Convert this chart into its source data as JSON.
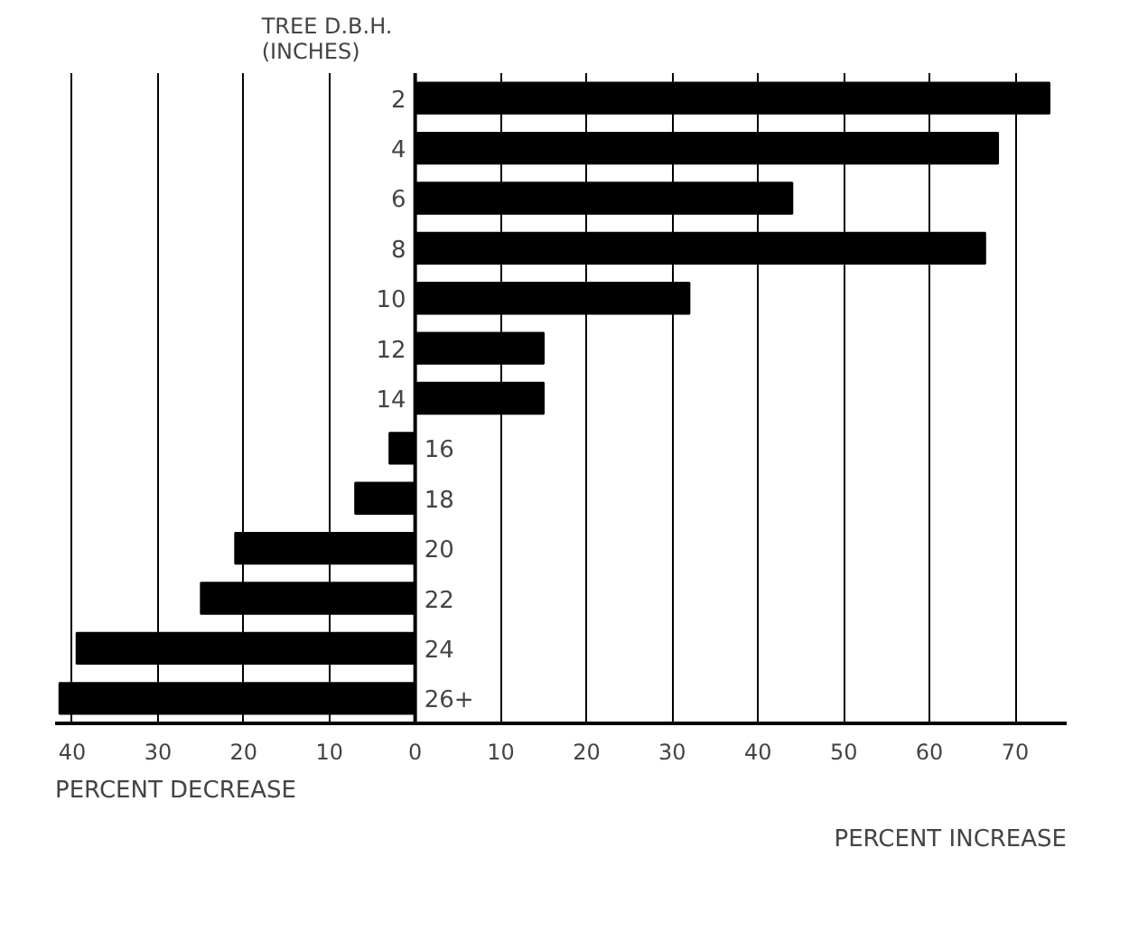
{
  "chart_data": {
    "type": "bar",
    "orientation": "horizontal",
    "ylabel": "TREE D.B.H.\n(INCHES)",
    "categories": [
      "2",
      "4",
      "6",
      "8",
      "10",
      "12",
      "14",
      "16",
      "18",
      "20",
      "22",
      "24",
      "26+"
    ],
    "values": [
      74,
      68,
      44,
      66.5,
      32,
      15,
      15,
      -3,
      -7,
      -21,
      -25,
      -39.5,
      -41.5
    ],
    "color": "#000000",
    "xlim": [
      -42,
      76
    ],
    "xticks": [
      {
        "value": -40,
        "label": "40"
      },
      {
        "value": -30,
        "label": "30"
      },
      {
        "value": -20,
        "label": "20"
      },
      {
        "value": -10,
        "label": "10"
      },
      0,
      10,
      20,
      30,
      40,
      50,
      60,
      70
    ],
    "grid": "x",
    "annotations": [
      "PERCENT DECREASE",
      "PERCENT INCREASE"
    ]
  }
}
